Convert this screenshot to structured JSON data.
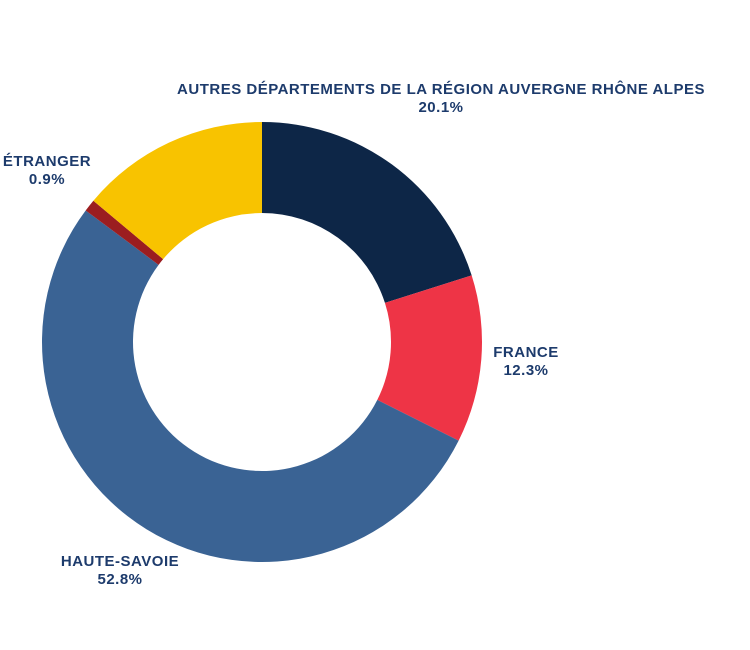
{
  "chart_data": {
    "type": "pie",
    "subtype": "donut",
    "direction": "clockwise",
    "slices": [
      {
        "label": "AUTRES DÉPARTEMENTS DE LA RÉGION AUVERGNE RHÔNE ALPES",
        "value": 20.1,
        "value_label": "20.1%",
        "color": "#0d2647"
      },
      {
        "label": "FRANCE",
        "value": 12.3,
        "value_label": "12.3%",
        "color": "#ee3446"
      },
      {
        "label": "HAUTE-SAVOIE",
        "value": 52.8,
        "value_label": "52.8%",
        "color": "#3a6394"
      },
      {
        "label": "ÉTRANGER",
        "value": 0.9,
        "value_label": "0.9%",
        "color": "#9b1d20"
      },
      {
        "value": 13.9,
        "color": "#f8c300"
      }
    ],
    "label_color": "#1d3b6c"
  }
}
